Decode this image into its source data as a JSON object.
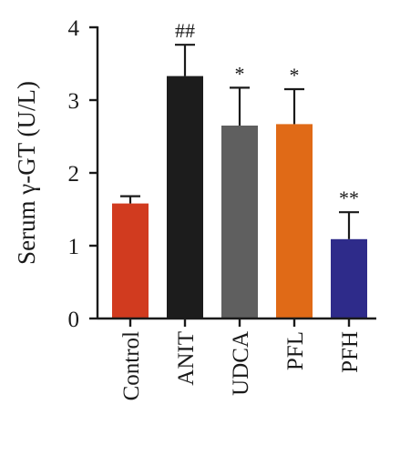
{
  "chart_data": {
    "type": "bar",
    "ylabel": "Serum γ-GT (U/L)",
    "ylim": [
      0,
      4
    ],
    "yticks": [
      "0",
      "1",
      "2",
      "3",
      "4"
    ],
    "categories": [
      "Control",
      "ANIT",
      "UDCA",
      "PFL",
      "PFH"
    ],
    "values": [
      1.58,
      3.33,
      2.65,
      2.67,
      1.09
    ],
    "errors": [
      0.1,
      0.43,
      0.52,
      0.48,
      0.37
    ],
    "significance": [
      "",
      "##",
      "*",
      "*",
      "**"
    ],
    "colors": [
      "#d13b1f",
      "#1c1c1c",
      "#5f5f5f",
      "#e06a17",
      "#2e2b8a"
    ]
  }
}
